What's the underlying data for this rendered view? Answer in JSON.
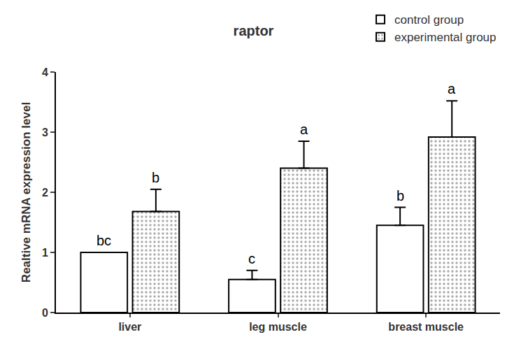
{
  "chart_data": {
    "type": "bar",
    "title": "raptor",
    "y_label": "Realtive mRNA expression level",
    "categories": [
      "liver",
      "leg muscle",
      "breast muscle"
    ],
    "series": [
      {
        "name": "control group",
        "color": "#ffffff",
        "marker": "none",
        "values": [
          1.0,
          0.55,
          1.45
        ],
        "errors": [
          0.0,
          0.15,
          0.3
        ],
        "annotations": [
          "bc",
          "c",
          "b"
        ]
      },
      {
        "name": "experimental group",
        "color": "#ffffff",
        "marker": "dotted",
        "values": [
          1.68,
          2.4,
          2.92
        ],
        "errors": [
          0.37,
          0.45,
          0.6
        ],
        "annotations": [
          "b",
          "a",
          "a"
        ]
      }
    ],
    "ylim": [
      0,
      4
    ],
    "yticks": [
      0,
      1,
      2,
      3,
      4
    ],
    "grid": false,
    "legend": "top right"
  }
}
